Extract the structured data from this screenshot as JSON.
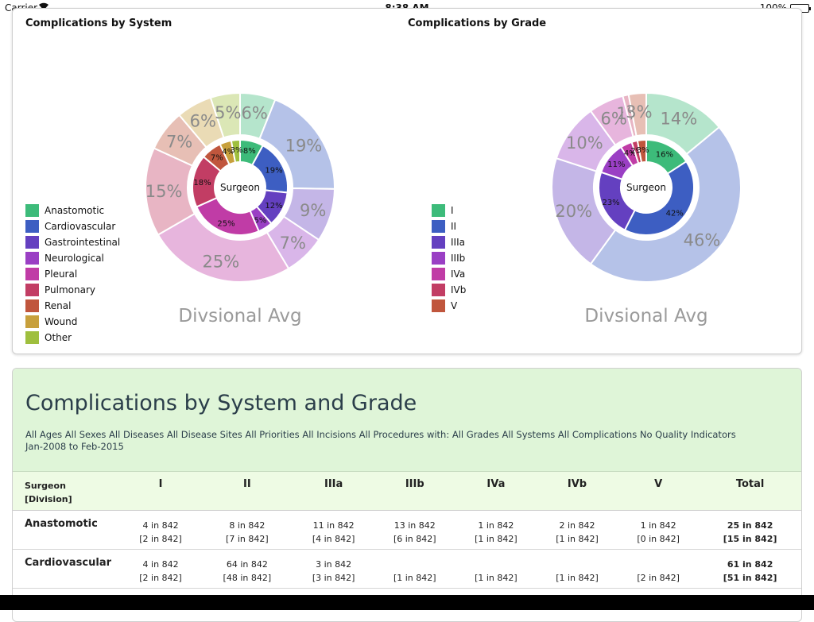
{
  "status_bar": {
    "carrier": "Carrier",
    "time": "8:38 AM",
    "battery": "100%"
  },
  "charts": {
    "by_system": {
      "title": "Complications by System",
      "center_label": "Surgeon",
      "avg_label": "Divsional Avg",
      "legend": [
        {
          "label": "Anastomotic",
          "color": "#3dbb7a"
        },
        {
          "label": "Cardiovascular",
          "color": "#3d5ec2"
        },
        {
          "label": "Gastrointestinal",
          "color": "#6440c0"
        },
        {
          "label": "Neurological",
          "color": "#9a3fc4"
        },
        {
          "label": "Pleural",
          "color": "#c03ca6"
        },
        {
          "label": "Pulmonary",
          "color": "#c23d64"
        },
        {
          "label": "Renal",
          "color": "#c0563d"
        },
        {
          "label": "Wound",
          "color": "#c8a03c"
        },
        {
          "label": "Other",
          "color": "#9fbf3e"
        }
      ]
    },
    "by_grade": {
      "title": "Complications by Grade",
      "center_label": "Surgeon",
      "avg_label": "Divsional Avg",
      "legend": [
        {
          "label": "I",
          "color": "#3dbb7a"
        },
        {
          "label": "II",
          "color": "#3d5ec2"
        },
        {
          "label": "IIIa",
          "color": "#6440c0"
        },
        {
          "label": "IIIb",
          "color": "#9a3fc4"
        },
        {
          "label": "IVa",
          "color": "#c03ca6"
        },
        {
          "label": "IVb",
          "color": "#c23d64"
        },
        {
          "label": "V",
          "color": "#c0563d"
        }
      ]
    }
  },
  "chart_data": [
    {
      "type": "pie",
      "title": "Complications by System",
      "categories": [
        "Anastomotic",
        "Cardiovascular",
        "Gastrointestinal",
        "Neurological",
        "Pleural",
        "Pulmonary",
        "Renal",
        "Wound",
        "Other"
      ],
      "series": [
        {
          "name": "Surgeon",
          "values": [
            8,
            19,
            12,
            5,
            25,
            18,
            7,
            4,
            3
          ],
          "labels": [
            "8%",
            "19%",
            "12%",
            "5%",
            "25%",
            "18%",
            "7%",
            "4%",
            "3%"
          ]
        },
        {
          "name": "Divsional Avg",
          "values": [
            6,
            19,
            9,
            7,
            25,
            15,
            7,
            6,
            5
          ],
          "labels": [
            "6%",
            "19%",
            "9%",
            "7%",
            "25%",
            "15%",
            "7%",
            "6%",
            "5%"
          ]
        }
      ]
    },
    {
      "type": "pie",
      "title": "Complications by Grade",
      "categories": [
        "I",
        "II",
        "IIIa",
        "IIIb",
        "IVa",
        "IVb",
        "V"
      ],
      "series": [
        {
          "name": "Surgeon",
          "values": [
            16,
            42,
            23,
            11,
            4,
            2,
            3
          ],
          "labels": [
            "16%",
            "42%",
            "23%",
            "11%",
            "4%",
            "2%",
            "3%"
          ]
        },
        {
          "name": "Divsional Avg",
          "values": [
            14,
            46,
            20,
            10,
            6,
            1,
            3
          ],
          "labels": [
            "14%",
            "46%",
            "20%",
            "10%",
            "6%",
            "1%",
            "3%"
          ]
        }
      ]
    }
  ],
  "table": {
    "heading": "Complications by System and Grade",
    "filters": "All Ages All Sexes All Diseases All Disease Sites All Priorities All Incisions All Procedures with: All Grades All Systems All Complications No Quality Indicators",
    "date_range": "Jan-2008 to Feb-2015",
    "header_first_line1": "Surgeon",
    "header_first_line2": "[Division]",
    "columns": [
      "I",
      "II",
      "IIIa",
      "IIIb",
      "IVa",
      "IVb",
      "V",
      "Total"
    ],
    "rows": [
      {
        "name": "Anastomotic",
        "cells": [
          {
            "top": "4 in 842",
            "bottom": "[2 in 842]"
          },
          {
            "top": "8 in 842",
            "bottom": "[7 in 842]"
          },
          {
            "top": "11 in 842",
            "bottom": "[4 in 842]"
          },
          {
            "top": "13 in 842",
            "bottom": "[6 in 842]"
          },
          {
            "top": "1 in 842",
            "bottom": "[1 in 842]"
          },
          {
            "top": "2 in 842",
            "bottom": "[1 in 842]"
          },
          {
            "top": "1 in 842",
            "bottom": "[0 in 842]"
          },
          {
            "top": "25 in 842",
            "bottom": "[15 in 842]"
          }
        ]
      },
      {
        "name": "Cardiovascular",
        "cells": [
          {
            "top": "4 in 842",
            "bottom": "[2 in 842]"
          },
          {
            "top": "64 in 842",
            "bottom": "[48 in 842]"
          },
          {
            "top": "3 in 842",
            "bottom": "[3 in 842]"
          },
          {
            "top": "",
            "bottom": "[1 in 842]"
          },
          {
            "top": "",
            "bottom": "[1 in 842]"
          },
          {
            "top": "",
            "bottom": "[1 in 842]"
          },
          {
            "top": "",
            "bottom": "[2 in 842]"
          },
          {
            "top": "61 in 842",
            "bottom": "[51 in 842]"
          }
        ]
      },
      {
        "name": "",
        "cells": []
      }
    ]
  }
}
